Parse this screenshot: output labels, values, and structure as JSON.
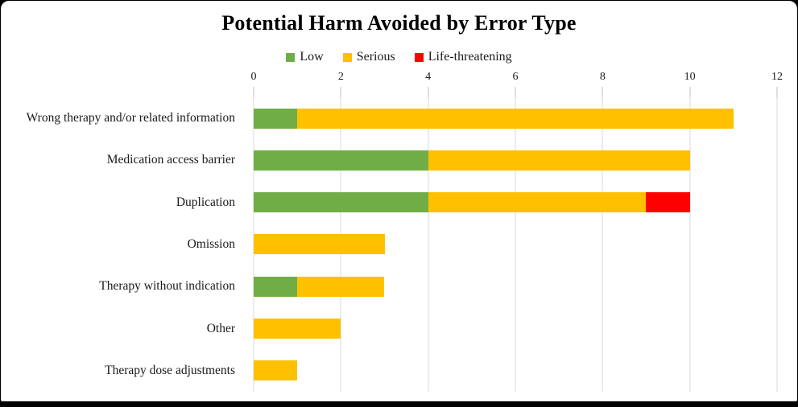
{
  "chart_data": {
    "type": "bar",
    "orientation": "horizontal",
    "stacked": true,
    "title": "Potential Harm Avoided by Error Type",
    "categories": [
      "Wrong therapy and/or related information",
      "Medication access barrier",
      "Duplication",
      "Omission",
      "Therapy without indication",
      "Other",
      "Therapy dose adjustments"
    ],
    "series": [
      {
        "name": "Low",
        "color": "#70AD47",
        "values": [
          1,
          4,
          4,
          0,
          1,
          0,
          0
        ]
      },
      {
        "name": "Serious",
        "color": "#FFC000",
        "values": [
          10,
          6,
          5,
          3,
          2,
          2,
          1
        ]
      },
      {
        "name": "Life-threatening",
        "color": "#FF0000",
        "values": [
          0,
          0,
          1,
          0,
          0,
          0,
          0
        ]
      }
    ],
    "x_ticks": [
      0,
      2,
      4,
      6,
      8,
      10,
      12
    ],
    "xlim": [
      0,
      12
    ],
    "grid": "vertical",
    "legend_position": "top",
    "legend_labels": [
      "Low",
      "Serious",
      "Life-threatening"
    ]
  },
  "colors": {
    "low": "#70AD47",
    "serious": "#FFC000",
    "life_threatening": "#FF0000",
    "gridline": "#D9D9D9",
    "tick": "#BFBFBF",
    "text": "#1A1A1A",
    "frame": "#000000",
    "background": "#FFFFFF"
  }
}
